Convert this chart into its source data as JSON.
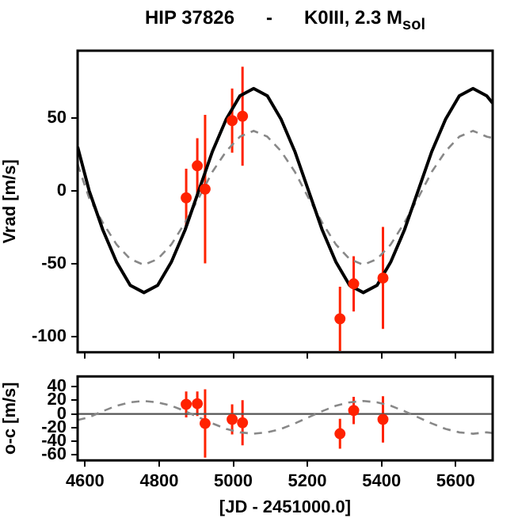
{
  "chart_data": [
    {
      "type": "scatter",
      "title": "HIP 37826      -      K0III, 2.3 M$_{sol}$",
      "ylabel": "Vrad [m/s]",
      "xlim": [
        4580,
        5700
      ],
      "xticks": [
        4600,
        4800,
        5000,
        5200,
        5400,
        5600
      ],
      "ylim": [
        -111,
        96
      ],
      "yticks": [
        -100,
        -50,
        0,
        50
      ],
      "tick_labels": "y",
      "series": [
        {
          "type": "line",
          "color": "#000000",
          "line_style": "solid",
          "x": [
            4580,
            4611,
            4648,
            4685,
            4722,
            4759,
            4796,
            4833,
            4870,
            4907,
            4944,
            4981,
            5018,
            5055,
            5092,
            5129,
            5166,
            5203,
            5240,
            5277,
            5314,
            5351,
            5388,
            5425,
            5462,
            5499,
            5536,
            5573,
            5610,
            5647,
            5684,
            5700
          ],
          "values": [
            30,
            0,
            -27,
            -49,
            -65,
            -70,
            -65,
            -49,
            -27,
            0,
            27,
            49,
            65,
            70,
            65,
            49,
            27,
            0,
            -27,
            -49,
            -65,
            -70,
            -65,
            -49,
            -27,
            0,
            27,
            49,
            65,
            70,
            65,
            60
          ]
        },
        {
          "type": "line",
          "color": "#888888",
          "line_style": "dashed",
          "x": [
            4580,
            4611,
            4648,
            4685,
            4722,
            4759,
            4796,
            4833,
            4870,
            4907,
            4944,
            4981,
            5018,
            5055,
            5092,
            5129,
            5166,
            5203,
            5240,
            5277,
            5314,
            5351,
            5388,
            5425,
            5462,
            5499,
            5536,
            5573,
            5610,
            5647,
            5684,
            5700
          ],
          "values": [
            18,
            -5,
            -22,
            -37,
            -47,
            -51,
            -47,
            -37,
            -22,
            -5,
            13,
            27,
            37,
            41,
            37,
            27,
            13,
            -5,
            -22,
            -37,
            -47,
            -51,
            -47,
            -37,
            -22,
            -5,
            13,
            27,
            37,
            41,
            37,
            36
          ]
        },
        {
          "type": "scatter",
          "color": "#ff2200",
          "marker": "circle",
          "x": [
            4873,
            4903,
            4924,
            4997,
            5025,
            5288,
            5325,
            5404
          ],
          "values": [
            -5,
            17,
            1,
            48,
            51,
            -88,
            -64,
            -60
          ],
          "errors": [
            20,
            19,
            51,
            22,
            34,
            22,
            19,
            35
          ]
        }
      ]
    },
    {
      "type": "scatter",
      "xlabel": "[JD - 2451000.0]",
      "ylabel": "o-c [m/s]",
      "xlim": [
        4580,
        5700
      ],
      "xticks": [
        4600,
        4800,
        5000,
        5200,
        5400,
        5600
      ],
      "ylim": [
        -68,
        55
      ],
      "yticks": [
        -60,
        -40,
        -20,
        0,
        20,
        40
      ],
      "ref_lines": [
        {
          "axis": "y",
          "value": 0,
          "color": "#555555"
        }
      ],
      "series": [
        {
          "type": "line",
          "color": "#888888",
          "line_style": "dashed",
          "x": [
            4580,
            4611,
            4648,
            4685,
            4722,
            4759,
            4796,
            4833,
            4870,
            4907,
            4944,
            4981,
            5018,
            5055,
            5092,
            5129,
            5166,
            5203,
            5240,
            5277,
            5314,
            5351,
            5388,
            5425,
            5462,
            5499,
            5536,
            5573,
            5610,
            5647,
            5684,
            5700
          ],
          "values": [
            -9,
            -5,
            4,
            12,
            17,
            19,
            17,
            12,
            4,
            -5,
            -14,
            -22,
            -27,
            -29,
            -27,
            -22,
            -14,
            -5,
            4,
            12,
            17,
            19,
            17,
            12,
            4,
            -5,
            -14,
            -22,
            -27,
            -29,
            -27,
            -28
          ]
        },
        {
          "type": "scatter",
          "color": "#ff2200",
          "marker": "circle",
          "x": [
            4873,
            4903,
            4924,
            4997,
            5025,
            5288,
            5325,
            5404
          ],
          "values": [
            14,
            15,
            -14,
            -8,
            -13,
            -29,
            5,
            -8
          ],
          "errors": [
            19,
            18,
            50,
            22,
            33,
            22,
            20,
            34
          ]
        }
      ]
    }
  ]
}
